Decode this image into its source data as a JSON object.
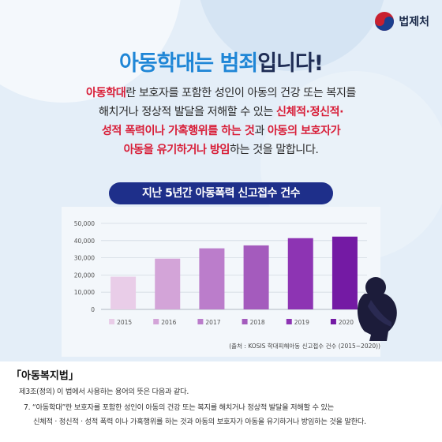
{
  "header": {
    "org_name": "법제처",
    "logo_icon": "taegeuk-icon"
  },
  "title": {
    "highlight": "아동학대는 범죄",
    "rest": "입니다!"
  },
  "description": {
    "p1_red": "아동학대",
    "p1": "란 보호자를 포함한 성인이 아동의 건강 또는 복지를",
    "p2": "해치거나 정상적 발달을 저해할 수 있는 ",
    "p2_red": "신체적·정신적·",
    "p3_red_a": "성적 폭력이나 가혹행위를 하는 것",
    "p3_mid": "과 ",
    "p3_red_b": "아동의 보호자가",
    "p4_red": "아동을 유기하거나 방임",
    "p4": "하는 것을 말합니다."
  },
  "chart_title": "지난 5년간 아동폭력 신고접수 건수",
  "source": "(출처 : KOSIS 학대피해아동 신고접수 건수 (2015~2020))",
  "colors": {
    "title_blue": "#1f86d6",
    "title_navy": "#1f2d55",
    "emphasis_red": "#d81e38",
    "chart_title_bg": "#1e2f8a",
    "silhouette": "#1c1c3a"
  },
  "chart_data": {
    "type": "bar",
    "title": "지난 5년간 아동폭력 신고접수 건수",
    "categories": [
      "2015",
      "2016",
      "2017",
      "2018",
      "2019",
      "2020"
    ],
    "values": [
      19000,
      29500,
      35500,
      37200,
      41400,
      42300
    ],
    "colors": [
      "#e9cde8",
      "#d3a4d8",
      "#bb7dcb",
      "#a45bbd",
      "#8d34b3",
      "#741aa4"
    ],
    "yticks": [
      "0",
      "10,000",
      "20,000",
      "30,000",
      "40,000",
      "50,000"
    ],
    "ylim": [
      0,
      50000
    ],
    "grid": true,
    "legend": "bottom"
  },
  "law": {
    "title": "「아동복지법」",
    "line1": "제3조(정의) 이 법에서 사용하는 용어의 뜻은 다음과 같다.",
    "line2": "7. “아동학대”란 보호자를 포함한 성인이 아동의 건강 또는 복지를 해치거나 정상적 발달을 저해할 수 있는",
    "line3": "신체적 · 정신적 · 성적 폭력 이나 가혹행위를 하는 것과 아동의 보호자가 아동을 유기하거나 방임하는 것을 말한다."
  }
}
